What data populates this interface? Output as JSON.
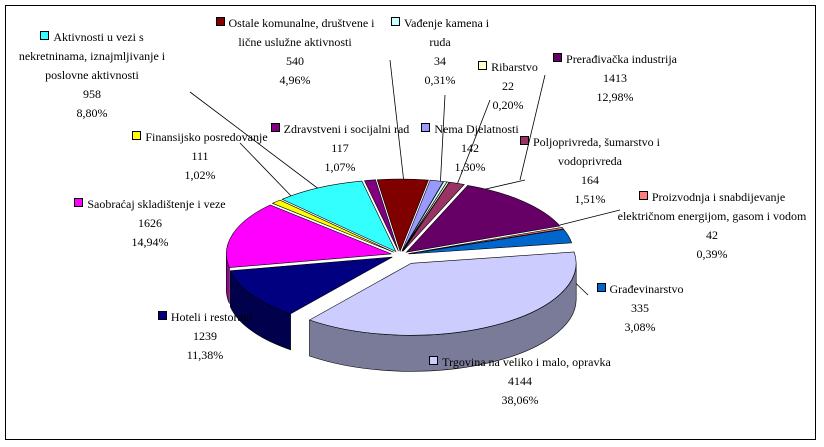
{
  "chart_data": {
    "type": "pie",
    "categories": [
      "Ostale komunalne, društvene i lične uslužne aktivnosti",
      "Nema Djelatnosti",
      "Vađenje kamena i ruda",
      "Ribarstvo",
      "Poljoprivreda, šumarstvo i vodoprivreda",
      "Prerađivačka industrija",
      "Proizvodnja i snabdijevanje električnom energijom, gasom i vodom",
      "Građevinarstvo",
      "Trgovina na veliko i malo, opravka",
      "Hoteli i restorani",
      "Saobraćaj skladištenje i veze",
      "Finansijsko posredovanje",
      "Aktivnosti u vezi s nekretninama, iznajmljivanje i poslovne aktivnosti",
      "Zdravstveni i socijalni rad"
    ],
    "values": [
      540,
      142,
      34,
      22,
      164,
      1413,
      42,
      335,
      4144,
      1239,
      1626,
      111,
      958,
      117
    ],
    "percent_labels": [
      "4,96%",
      "1,30%",
      "0,31%",
      "0,20%",
      "1,51%",
      "12,98%",
      "0,39%",
      "3,08%",
      "38,06%",
      "11,38%",
      "14,94%",
      "1,02%",
      "8,80%",
      "1,07%"
    ],
    "colors": [
      "#800000",
      "#9999ff",
      "#ccffff",
      "#ffffcc",
      "#993366",
      "#660066",
      "#ff8080",
      "#0066cc",
      "#ccccff",
      "#000080",
      "#ff00ff",
      "#ffff00",
      "#33ffff",
      "#800080"
    ]
  }
}
